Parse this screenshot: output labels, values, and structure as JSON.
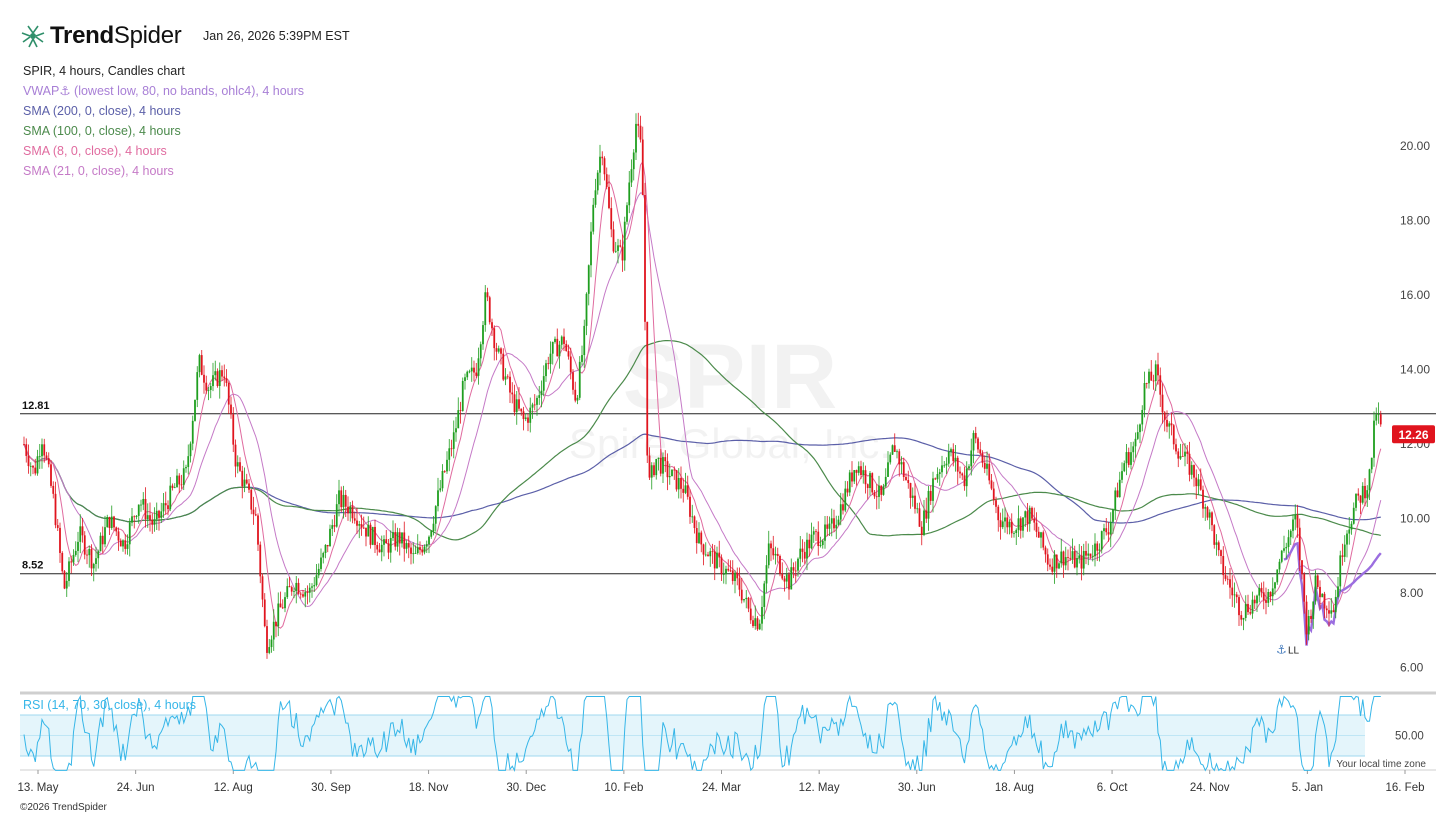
{
  "brand": {
    "name_bold": "Trend",
    "name_light": "Spider"
  },
  "timestamp": "Jan 26, 2026 5:39PM EST",
  "legend": {
    "title": "SPIR, 4 hours, Candles chart",
    "items": [
      {
        "label": "VWAP⚓ (lowest low, 80, no bands, ohlc4), 4 hours",
        "color": "#a87fd6"
      },
      {
        "label": "SMA (200, 0, close), 4 hours",
        "color": "#5b5fa8"
      },
      {
        "label": "SMA (100, 0, close), 4 hours",
        "color": "#4b8a4b"
      },
      {
        "label": "SMA (8, 0, close), 4 hours",
        "color": "#e06b9f"
      },
      {
        "label": "SMA (21, 0, close), 4 hours",
        "color": "#c57ac7"
      }
    ]
  },
  "rsi_label": "RSI (14, 70, 30, close), 4 hours",
  "footer": "©2026 TrendSpider",
  "timezone_note": "Your local time zone",
  "watermark": {
    "ticker": "SPIR",
    "name": "Spire Global, Inc."
  },
  "colors": {
    "up": "#1f9e1f",
    "down": "#e0141e",
    "rsi": "#36b6e8",
    "rsi_band": "#e4f5fb",
    "sma200": "#5b5fa8",
    "sma100": "#4b8a4b",
    "sma8": "#e06b9f",
    "sma21": "#c57ac7",
    "vwap": "#9b6ee0",
    "last_price_bg": "#e0141e"
  },
  "chart_data": {
    "type": "candlestick",
    "ticker": "SPIR",
    "interval": "4 hours",
    "y_ticks": [
      6,
      8,
      10,
      12,
      14,
      16,
      18,
      20
    ],
    "y_tick_labels": [
      "6.00",
      "8.00",
      "10.00",
      "12.00",
      "14.00",
      "16.00",
      "18.00",
      "20.00"
    ],
    "ylim": [
      5.4,
      21.9
    ],
    "horizontal_lines": [
      {
        "value": 12.81,
        "label": "12.81"
      },
      {
        "value": 8.52,
        "label": "8.52"
      }
    ],
    "last_price": {
      "value": 12.26,
      "label": "12.26"
    },
    "anchor_marker": {
      "label": "LL",
      "value": 6.6
    },
    "x_tick_labels": [
      "13. May",
      "24. Jun",
      "12. Aug",
      "30. Sep",
      "18. Nov",
      "30. Dec",
      "10. Feb",
      "24. Mar",
      "12. May",
      "30. Jun",
      "18. Aug",
      "6. Oct",
      "24. Nov",
      "5. Jan",
      "16. Feb"
    ],
    "price_path": [
      [
        0,
        12.0
      ],
      [
        10,
        11.2
      ],
      [
        18,
        12.2
      ],
      [
        30,
        10.4
      ],
      [
        40,
        8.1
      ],
      [
        55,
        9.6
      ],
      [
        70,
        8.8
      ],
      [
        85,
        10.0
      ],
      [
        100,
        9.3
      ],
      [
        115,
        10.5
      ],
      [
        130,
        9.8
      ],
      [
        150,
        10.8
      ],
      [
        162,
        11.2
      ],
      [
        175,
        14.2
      ],
      [
        185,
        13.5
      ],
      [
        200,
        14.0
      ],
      [
        212,
        11.5
      ],
      [
        222,
        10.8
      ],
      [
        232,
        10.0
      ],
      [
        242,
        6.6
      ],
      [
        255,
        7.5
      ],
      [
        270,
        8.3
      ],
      [
        285,
        8.0
      ],
      [
        300,
        9.0
      ],
      [
        315,
        10.5
      ],
      [
        330,
        10.2
      ],
      [
        345,
        9.6
      ],
      [
        360,
        9.2
      ],
      [
        375,
        9.5
      ],
      [
        390,
        8.9
      ],
      [
        405,
        9.6
      ],
      [
        418,
        11.0
      ],
      [
        430,
        12.2
      ],
      [
        440,
        13.6
      ],
      [
        452,
        14.0
      ],
      [
        462,
        16.0
      ],
      [
        472,
        14.6
      ],
      [
        488,
        13.2
      ],
      [
        500,
        12.6
      ],
      [
        512,
        13.1
      ],
      [
        525,
        14.4
      ],
      [
        540,
        14.8
      ],
      [
        552,
        13.2
      ],
      [
        560,
        14.8
      ],
      [
        570,
        18.8
      ],
      [
        578,
        20.0
      ],
      [
        588,
        17.5
      ],
      [
        598,
        17.0
      ],
      [
        605,
        19.0
      ],
      [
        612,
        20.6
      ],
      [
        618,
        19.8
      ],
      [
        624,
        10.8
      ],
      [
        632,
        11.6
      ],
      [
        645,
        11.2
      ],
      [
        660,
        10.8
      ],
      [
        675,
        9.4
      ],
      [
        690,
        8.9
      ],
      [
        705,
        8.5
      ],
      [
        715,
        8.2
      ],
      [
        725,
        7.5
      ],
      [
        735,
        7.2
      ],
      [
        745,
        9.2
      ],
      [
        755,
        8.8
      ],
      [
        765,
        8.3
      ],
      [
        775,
        9.0
      ],
      [
        790,
        9.5
      ],
      [
        805,
        9.6
      ],
      [
        818,
        10.4
      ],
      [
        832,
        11.5
      ],
      [
        845,
        11.0
      ],
      [
        858,
        10.5
      ],
      [
        870,
        12.0
      ],
      [
        885,
        10.8
      ],
      [
        898,
        9.8
      ],
      [
        910,
        11.1
      ],
      [
        925,
        11.8
      ],
      [
        940,
        11.0
      ],
      [
        950,
        12.2
      ],
      [
        962,
        11.3
      ],
      [
        975,
        10.0
      ],
      [
        990,
        9.8
      ],
      [
        1005,
        10.1
      ],
      [
        1015,
        9.5
      ],
      [
        1025,
        8.8
      ],
      [
        1040,
        9.0
      ],
      [
        1055,
        8.8
      ],
      [
        1070,
        9.2
      ],
      [
        1085,
        9.8
      ],
      [
        1100,
        11.5
      ],
      [
        1112,
        12.0
      ],
      [
        1120,
        13.5
      ],
      [
        1132,
        13.9
      ],
      [
        1142,
        12.6
      ],
      [
        1155,
        11.8
      ],
      [
        1170,
        11.2
      ],
      [
        1185,
        10.1
      ],
      [
        1195,
        8.9
      ],
      [
        1205,
        8.2
      ],
      [
        1218,
        7.5
      ],
      [
        1230,
        7.8
      ],
      [
        1245,
        8.0
      ],
      [
        1260,
        9.2
      ],
      [
        1272,
        10.0
      ],
      [
        1283,
        7.0
      ],
      [
        1292,
        8.3
      ],
      [
        1300,
        7.8
      ],
      [
        1310,
        7.6
      ],
      [
        1320,
        9.5
      ],
      [
        1332,
        10.4
      ],
      [
        1345,
        11.0
      ],
      [
        1352,
        12.9
      ],
      [
        1358,
        12.26
      ]
    ]
  }
}
